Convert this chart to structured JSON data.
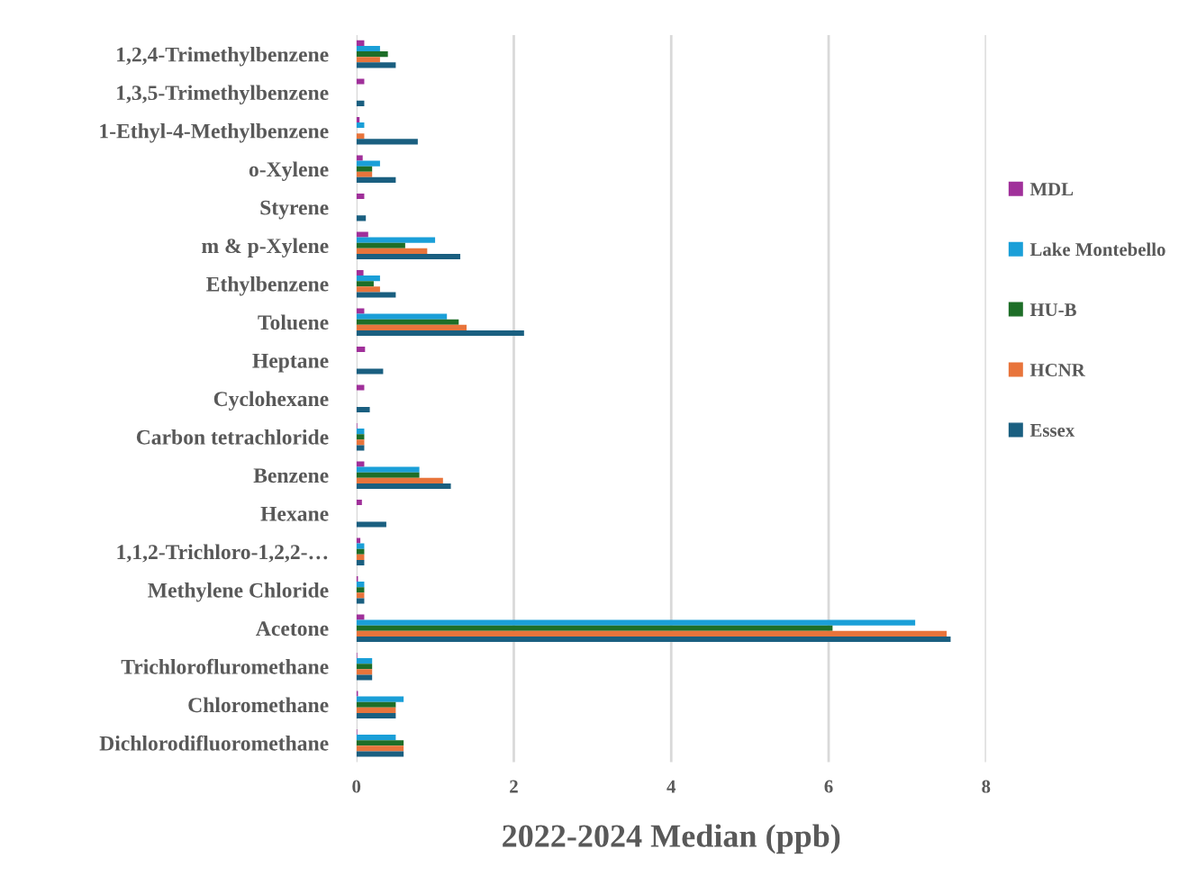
{
  "chart_data": {
    "type": "bar",
    "orientation": "horizontal",
    "xlabel": "2022-2024 Median (ppb)",
    "categories": [
      "1,2,4-Trimethylbenzene",
      "1,3,5-Trimethylbenzene",
      "1-Ethyl-4-Methylbenzene",
      "o-Xylene",
      "Styrene",
      "m & p-Xylene",
      "Ethylbenzene",
      "Toluene",
      "Heptane",
      "Cyclohexane",
      "Carbon tetrachloride",
      "Benzene",
      "Hexane",
      "1,1,2-Trichloro-1,2,2-…",
      "Methylene Chloride",
      "Acetone",
      "Trichlorofluromethane",
      "Chloromethane",
      "Dichlorodifluoromethane"
    ],
    "series": [
      {
        "name": "MDL",
        "color": "#a0309a",
        "values": [
          0.1,
          0.1,
          0.04,
          0.08,
          0.1,
          0.15,
          0.09,
          0.1,
          0.11,
          0.1,
          0.01,
          0.1,
          0.07,
          0.05,
          0.02,
          0.1,
          0.01,
          0.02,
          0.01
        ]
      },
      {
        "name": "Lake Montebello",
        "color": "#1a9fd8",
        "values": [
          0.3,
          null,
          0.1,
          0.3,
          null,
          1.0,
          0.3,
          1.15,
          null,
          null,
          0.1,
          0.8,
          null,
          0.1,
          0.1,
          7.1,
          0.2,
          0.6,
          0.5
        ]
      },
      {
        "name": "HU-B",
        "color": "#1e6e28",
        "values": [
          0.4,
          null,
          null,
          0.2,
          null,
          0.62,
          0.22,
          1.3,
          null,
          null,
          0.1,
          0.8,
          null,
          0.1,
          0.1,
          6.05,
          0.2,
          0.5,
          0.6
        ]
      },
      {
        "name": "HCNR",
        "color": "#e8743b",
        "values": [
          0.3,
          null,
          0.1,
          0.2,
          null,
          0.9,
          0.3,
          1.4,
          null,
          null,
          0.1,
          1.1,
          null,
          0.1,
          0.1,
          7.5,
          0.2,
          0.5,
          0.6
        ]
      },
      {
        "name": "Essex",
        "color": "#1a5f80",
        "values": [
          0.5,
          0.1,
          0.78,
          0.5,
          0.12,
          1.32,
          0.5,
          2.13,
          0.34,
          0.17,
          0.1,
          1.2,
          0.38,
          0.1,
          0.1,
          7.55,
          0.2,
          0.5,
          0.6
        ]
      }
    ],
    "xlim": [
      0,
      8
    ],
    "xticks": [
      0,
      2,
      4,
      6,
      8
    ],
    "grid": "x",
    "legend": "right"
  }
}
